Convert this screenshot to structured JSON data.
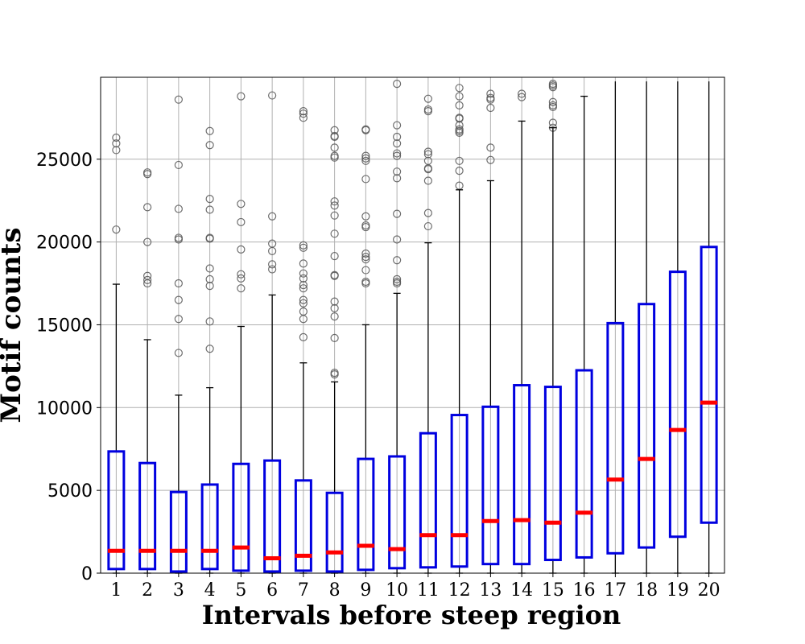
{
  "chart_data": {
    "type": "box",
    "xlabel": "Intervals before steep region",
    "ylabel": "Motif counts",
    "ylim": [
      0,
      29700
    ],
    "yticks": [
      0,
      5000,
      10000,
      15000,
      20000,
      25000
    ],
    "grid": true,
    "colors": {
      "box": "#0000e0",
      "median": "#ff0000",
      "whisker": "#000000",
      "flier": "#555555",
      "grid": "#b0b0b0"
    },
    "categories": [
      "1",
      "2",
      "3",
      "4",
      "5",
      "6",
      "7",
      "8",
      "9",
      "10",
      "11",
      "12",
      "13",
      "14",
      "15",
      "16",
      "17",
      "18",
      "19",
      "20"
    ],
    "boxes": [
      {
        "q1": 250,
        "median": 1350,
        "q3": 7350,
        "whislo": 0,
        "whishi": 17450,
        "fliers": [
          26300,
          25950,
          25550,
          20750
        ]
      },
      {
        "q1": 250,
        "median": 1350,
        "q3": 6650,
        "whislo": 0,
        "whishi": 14100,
        "fliers": [
          24200,
          24100,
          22100,
          20000,
          17950,
          17700,
          17500
        ]
      },
      {
        "q1": 100,
        "median": 1350,
        "q3": 4900,
        "whislo": 0,
        "whishi": 10750,
        "fliers": [
          28600,
          24650,
          22000,
          20250,
          20150,
          17500,
          16500,
          15350,
          13300
        ]
      },
      {
        "q1": 250,
        "median": 1350,
        "q3": 5350,
        "whislo": 0,
        "whishi": 11200,
        "fliers": [
          26700,
          25850,
          22600,
          21950,
          20250,
          20200,
          18400,
          17750,
          17350,
          15200,
          13550
        ]
      },
      {
        "q1": 150,
        "median": 1550,
        "q3": 6600,
        "whislo": 0,
        "whishi": 14900,
        "fliers": [
          28800,
          22300,
          21200,
          19550,
          18050,
          17800,
          17200
        ]
      },
      {
        "q1": 100,
        "median": 900,
        "q3": 6800,
        "whislo": 0,
        "whishi": 16800,
        "fliers": [
          28850,
          21550,
          19900,
          19450,
          18650,
          18350
        ]
      },
      {
        "q1": 150,
        "median": 1050,
        "q3": 5600,
        "whislo": 0,
        "whishi": 12700,
        "fliers": [
          27900,
          27750,
          27500,
          19800,
          19650,
          18700,
          18100,
          17800,
          17400,
          17200,
          16500,
          16300,
          15800,
          15350,
          14250
        ]
      },
      {
        "q1": 100,
        "median": 1250,
        "q3": 4850,
        "whislo": 0,
        "whishi": 11550,
        "fliers": [
          26750,
          26400,
          26350,
          25700,
          25200,
          25100,
          22450,
          22200,
          21600,
          20500,
          19150,
          18000,
          17950,
          16400,
          16000,
          15500,
          14200,
          12100,
          12000
        ]
      },
      {
        "q1": 200,
        "median": 1650,
        "q3": 6900,
        "whislo": 0,
        "whishi": 15000,
        "fliers": [
          26800,
          26750,
          25200,
          25050,
          24900,
          23800,
          21550,
          21000,
          20900,
          19300,
          19100,
          18950,
          18300,
          17600,
          17500
        ]
      },
      {
        "q1": 300,
        "median": 1450,
        "q3": 7050,
        "whislo": 0,
        "whishi": 16900,
        "fliers": [
          29550,
          27050,
          26350,
          25950,
          25350,
          25200,
          24250,
          23850,
          21700,
          20150,
          18900,
          17750,
          17600,
          17500
        ]
      },
      {
        "q1": 350,
        "median": 2300,
        "q3": 8450,
        "whislo": 0,
        "whishi": 19950,
        "fliers": [
          28650,
          28000,
          27900,
          25450,
          25300,
          24900,
          24450,
          24400,
          23700,
          21750,
          20950
        ]
      },
      {
        "q1": 400,
        "median": 2300,
        "q3": 9550,
        "whislo": 0,
        "whishi": 23150,
        "fliers": [
          29300,
          28800,
          28250,
          27500,
          27450,
          27050,
          26800,
          26700,
          26600,
          24900,
          24300,
          23400
        ]
      },
      {
        "q1": 550,
        "median": 3150,
        "q3": 10050,
        "whislo": 0,
        "whishi": 23700,
        "fliers": [
          28950,
          28700,
          28600,
          28100,
          25700,
          24950
        ]
      },
      {
        "q1": 550,
        "median": 3200,
        "q3": 11350,
        "whislo": 0,
        "whishi": 27300,
        "fliers": [
          28950,
          28750
        ]
      },
      {
        "q1": 800,
        "median": 3050,
        "q3": 11250,
        "whislo": 0,
        "whishi": 26900,
        "fliers": [
          29550,
          29450,
          29350,
          28450,
          28250,
          28150,
          27200,
          26900
        ]
      },
      {
        "q1": 950,
        "median": 3650,
        "q3": 12250,
        "whislo": 0,
        "whishi": 28800,
        "fliers": [
          29800
        ]
      },
      {
        "q1": 1200,
        "median": 5650,
        "q3": 15100,
        "whislo": 0,
        "whishi": 29700,
        "fliers": []
      },
      {
        "q1": 1550,
        "median": 6900,
        "q3": 16250,
        "whislo": 0,
        "whishi": 29700,
        "fliers": []
      },
      {
        "q1": 2200,
        "median": 8650,
        "q3": 18200,
        "whislo": 0,
        "whishi": 29700,
        "fliers": []
      },
      {
        "q1": 3050,
        "median": 10300,
        "q3": 19700,
        "whislo": 0,
        "whishi": 29700,
        "fliers": []
      }
    ]
  }
}
